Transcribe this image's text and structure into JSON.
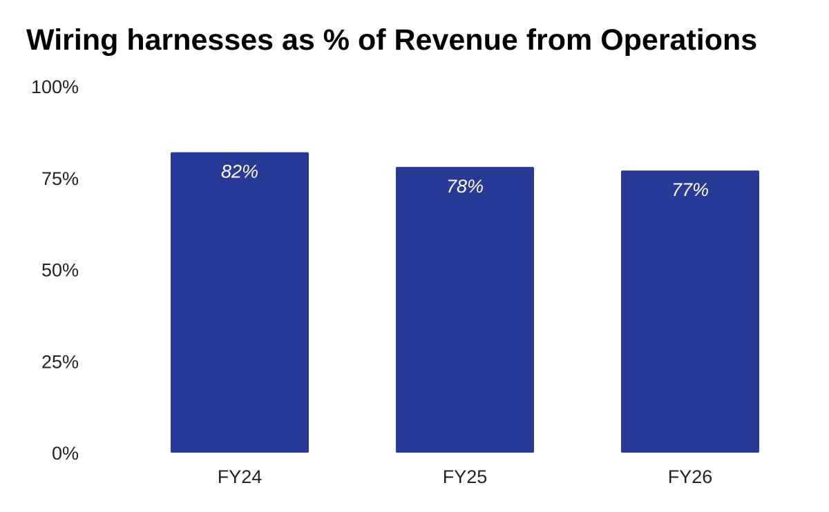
{
  "chart_data": {
    "type": "bar",
    "title": "Wiring harnesses as % of Revenue from Operations",
    "categories": [
      "FY24",
      "FY25",
      "FY26"
    ],
    "values": [
      82,
      78,
      77
    ],
    "data_labels": [
      "82%",
      "78%",
      "77%"
    ],
    "y_ticks": [
      {
        "value": 0,
        "label": "0%"
      },
      {
        "value": 25,
        "label": "25%"
      },
      {
        "value": 50,
        "label": "50%"
      },
      {
        "value": 75,
        "label": "75%"
      },
      {
        "value": 100,
        "label": "100%"
      }
    ],
    "ylim": [
      0,
      100
    ],
    "xlabel": "",
    "ylabel": "",
    "grid": false,
    "legend": "none",
    "bar_color": "#283a96",
    "label_color": "#ffffff"
  }
}
